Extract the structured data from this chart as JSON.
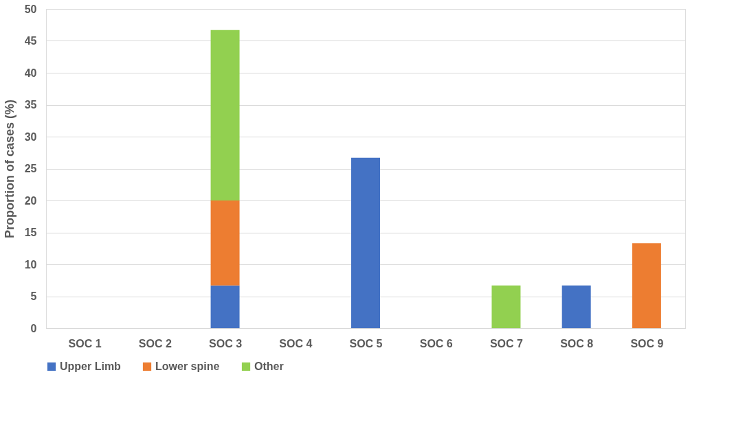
{
  "chart_data": {
    "type": "bar",
    "ylabel": "Proportion of cases (%)",
    "categories": [
      "SOC 1",
      "SOC 2",
      "SOC 3",
      "SOC 4",
      "SOC 5",
      "SOC 6",
      "SOC 7",
      "SOC 8",
      "SOC 9"
    ],
    "series": [
      {
        "name": "Upper Limb",
        "color": "#4472c4",
        "values": [
          null,
          null,
          6.7,
          null,
          26.7,
          null,
          null,
          6.7,
          null
        ]
      },
      {
        "name": "Lower spine",
        "color": "#ed7d31",
        "values": [
          null,
          null,
          13.3,
          null,
          null,
          null,
          null,
          null,
          13.3
        ]
      },
      {
        "name": "Other",
        "color": "#92d050",
        "values": [
          null,
          null,
          26.7,
          null,
          null,
          null,
          6.7,
          null,
          null
        ]
      }
    ],
    "stacked": true,
    "ylim": [
      0,
      50
    ],
    "yticks": [
      0,
      5,
      10,
      15,
      20,
      25,
      30,
      35,
      40,
      45,
      50
    ],
    "grid": "y",
    "legend": "bottom"
  }
}
